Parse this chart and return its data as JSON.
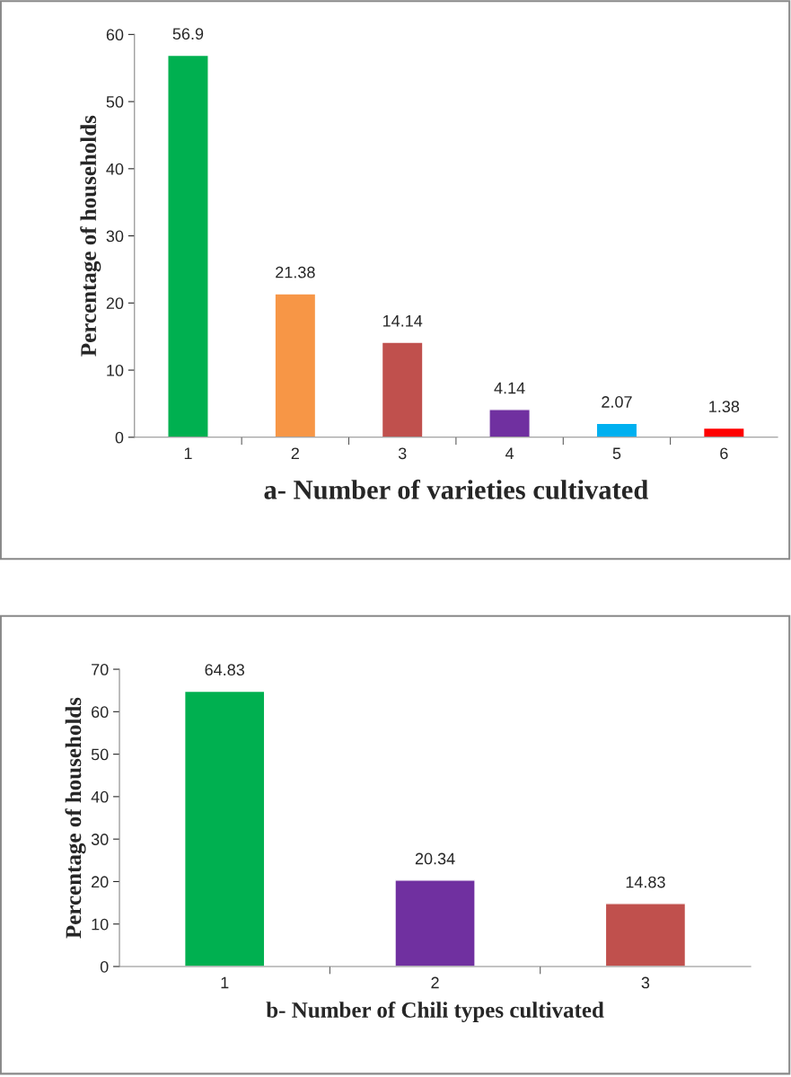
{
  "chart_data": [
    {
      "type": "bar",
      "xlabel": "a- Number of varieties cultivated",
      "ylabel": "Percentage of households",
      "categories": [
        "1",
        "2",
        "3",
        "4",
        "5",
        "6"
      ],
      "values": [
        56.9,
        21.38,
        14.14,
        4.14,
        2.07,
        1.38
      ],
      "colors": [
        "#00b050",
        "#f79646",
        "#c0504d",
        "#7030a0",
        "#00b0f0",
        "#ff0000"
      ],
      "ylim": [
        0,
        60
      ],
      "yticks": [
        0,
        10,
        20,
        30,
        40,
        50,
        60
      ],
      "grid": false,
      "legend": false,
      "data_labels": true
    },
    {
      "type": "bar",
      "xlabel": "b- Number of Chili types cultivated",
      "ylabel": "Percentage of households",
      "categories": [
        "1",
        "2",
        "3"
      ],
      "values": [
        64.83,
        20.34,
        14.83
      ],
      "colors": [
        "#00b050",
        "#7030a0",
        "#c0504d"
      ],
      "ylim": [
        0,
        70
      ],
      "yticks": [
        0,
        10,
        20,
        30,
        40,
        50,
        60,
        70
      ],
      "grid": false,
      "legend": false,
      "data_labels": true
    }
  ]
}
